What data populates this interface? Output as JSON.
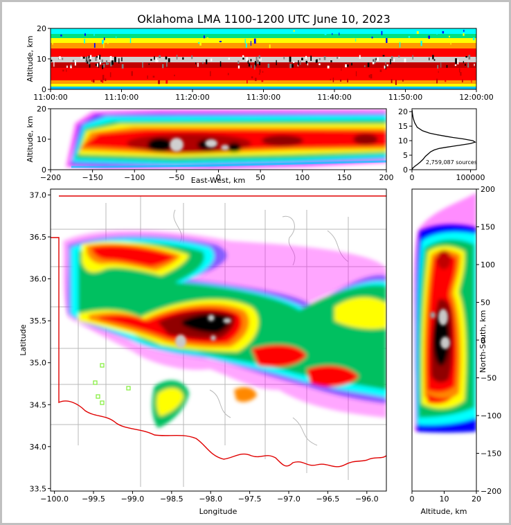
{
  "title": "Oklahoma LMA 1100-1200 UTC June 10, 2023",
  "source_count": "2,759,087 sources",
  "colors": {
    "plot_background": "#ffffff",
    "state_border": "#e00000",
    "county_lines": "#b8b8b8",
    "station_markers": "#88ee44",
    "density_scale": [
      "#ff00ff",
      "#0000ff",
      "#00ffff",
      "#00c060",
      "#ffff00",
      "#ff8800",
      "#ff0000",
      "#800000",
      "#000000",
      "#ffffff"
    ]
  },
  "chart_data": [
    {
      "id": "time-height",
      "type": "heatmap",
      "xlabel": "",
      "ylabel": "Altitude, km",
      "xlim": [
        "11:00:00",
        "12:00:00"
      ],
      "ylim": [
        0,
        20
      ],
      "xticks": [
        "11:00:00",
        "11:10:00",
        "11:20:00",
        "11:30:00",
        "11:40:00",
        "11:50:00",
        "12:00:00"
      ],
      "yticks": [
        "0",
        "10",
        "20"
      ]
    },
    {
      "id": "east-west-height",
      "type": "heatmap",
      "xlabel": "East-West, km",
      "ylabel": "Altitude, km",
      "xlim": [
        -200,
        200
      ],
      "ylim": [
        0,
        20
      ],
      "xticks": [
        "−200",
        "−150",
        "−100",
        "−50",
        "0",
        "50",
        "100",
        "150",
        "200"
      ],
      "yticks": [
        "0",
        "10",
        "20"
      ]
    },
    {
      "id": "altitude-histogram",
      "type": "line",
      "xlabel": "",
      "ylabel": "",
      "xlim": [
        0,
        110000
      ],
      "ylim": [
        0,
        21
      ],
      "xticks": [
        "0",
        "100000"
      ],
      "yticks": [
        "0",
        "5",
        "10",
        "15",
        "20"
      ],
      "x": [
        0,
        1500,
        5000,
        9000,
        14000,
        19000,
        23000,
        28000,
        32000,
        38000,
        46000,
        58000,
        70000,
        84000,
        100000,
        108000,
        104000,
        88000,
        70000,
        58000,
        44000,
        30000,
        18000,
        9000,
        4500,
        2000,
        800,
        200
      ],
      "y": [
        0,
        0.6,
        1.2,
        1.8,
        2.6,
        3.6,
        4.6,
        5.5,
        6.2,
        6.8,
        7.3,
        7.7,
        8.1,
        8.5,
        9.0,
        9.5,
        10.0,
        10.6,
        11.1,
        11.5,
        12.0,
        12.6,
        13.4,
        14.6,
        16.2,
        17.8,
        19.2,
        20.5
      ]
    },
    {
      "id": "plan-view",
      "type": "heatmap",
      "xlabel": "Longitude",
      "ylabel": "Latitude",
      "xlim": [
        -100.05,
        -95.75
      ],
      "ylim": [
        33.47,
        37.07
      ],
      "xticks": [
        "−100.0",
        "−99.5",
        "−99.0",
        "−98.5",
        "−98.0",
        "−97.5",
        "−97.0",
        "−96.5",
        "−96.0"
      ],
      "yticks": [
        "33.5",
        "34.0",
        "34.5",
        "35.0",
        "35.5",
        "36.0",
        "36.5",
        "37.0"
      ]
    },
    {
      "id": "north-south-height",
      "type": "heatmap",
      "xlabel": "Altitude, km",
      "ylabel": "North-South, km",
      "xlim": [
        0,
        20
      ],
      "ylim": [
        -200,
        200
      ],
      "xticks": [
        "0",
        "10",
        "20"
      ],
      "yticks": [
        "−200",
        "−150",
        "−100",
        "−50",
        "0",
        "50",
        "100",
        "150",
        "200"
      ]
    }
  ]
}
